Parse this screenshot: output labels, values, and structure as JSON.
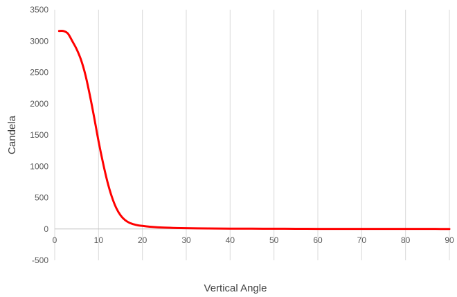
{
  "chart_data": {
    "type": "line",
    "title": "",
    "xlabel": "Vertical Angle",
    "ylabel": "Candela",
    "xlim": [
      0,
      90
    ],
    "ylim": [
      -500,
      3500
    ],
    "x_ticks": [
      0,
      10,
      20,
      30,
      40,
      50,
      60,
      70,
      80,
      90
    ],
    "y_ticks": [
      -500,
      0,
      500,
      1000,
      1500,
      2000,
      2500,
      3000,
      3500
    ],
    "grid": {
      "vertical": true,
      "horizontal": false
    },
    "legend": "none",
    "series": [
      {
        "color": "#ff0000",
        "x": [
          1,
          2,
          3,
          4,
          5,
          6,
          7,
          8,
          9,
          10,
          11,
          12,
          13,
          14,
          15,
          16,
          17,
          18,
          19,
          20,
          22,
          25,
          30,
          35,
          40,
          45,
          50,
          55,
          60,
          65,
          70,
          75,
          80,
          85,
          90
        ],
        "y": [
          3160,
          3160,
          3120,
          3000,
          2870,
          2700,
          2460,
          2140,
          1780,
          1400,
          1060,
          760,
          520,
          340,
          220,
          145,
          100,
          75,
          58,
          50,
          35,
          22,
          12,
          8,
          6,
          5,
          4,
          3,
          2,
          2,
          1,
          1,
          1,
          1,
          0
        ]
      }
    ]
  }
}
